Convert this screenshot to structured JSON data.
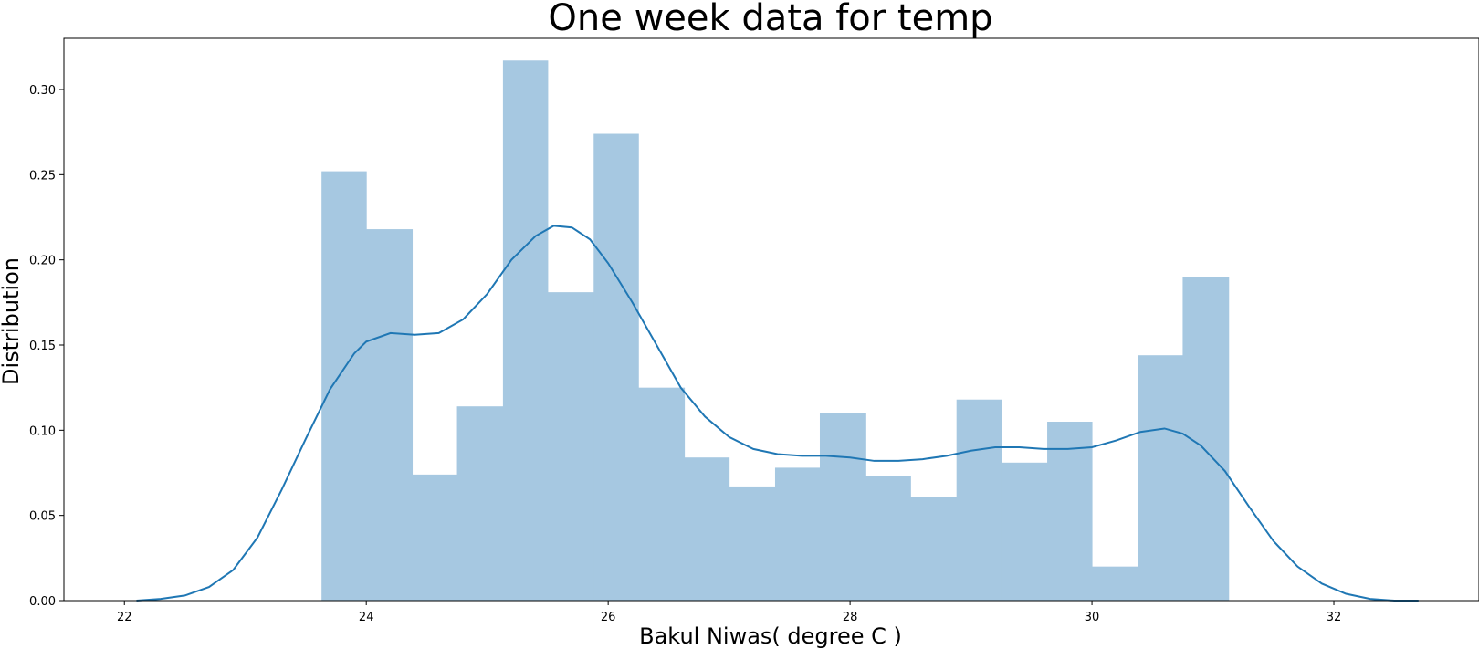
{
  "chart_data": {
    "type": "bar",
    "title": "One week data for temp",
    "xlabel": "Bakul Niwas( degree C )",
    "ylabel": "Distribution",
    "xlim": [
      21.5,
      33.2
    ],
    "ylim": [
      0,
      0.33
    ],
    "grid": false,
    "legend": "none",
    "xticks": [
      22,
      24,
      26,
      28,
      30,
      32
    ],
    "xtick_labels": [
      "22",
      "24",
      "26",
      "28",
      "30",
      "32"
    ],
    "yticks": [
      0,
      0.05,
      0.1,
      0.15,
      0.2,
      0.25,
      0.3
    ],
    "ytick_labels": [
      "0.00",
      "0.05",
      "0.10",
      "0.15",
      "0.20",
      "0.25",
      "0.30"
    ],
    "bin_edges": [
      23.63,
      24.0,
      24.38,
      24.75,
      25.13,
      25.5,
      25.88,
      26.25,
      26.63,
      27.0,
      27.38,
      27.75,
      28.13,
      28.5,
      28.88,
      29.25,
      29.63,
      30.0,
      30.38,
      30.75,
      31.13
    ],
    "histogram": [
      0.252,
      0.218,
      0.074,
      0.114,
      0.317,
      0.181,
      0.274,
      0.125,
      0.084,
      0.067,
      0.078,
      0.11,
      0.073,
      0.061,
      0.118,
      0.081,
      0.105,
      0.02,
      0.144,
      0.19
    ],
    "kde": {
      "x": [
        22.1,
        22.3,
        22.5,
        22.7,
        22.9,
        23.1,
        23.3,
        23.5,
        23.7,
        23.9,
        24.0,
        24.2,
        24.4,
        24.6,
        24.8,
        25.0,
        25.2,
        25.4,
        25.55,
        25.7,
        25.85,
        26.0,
        26.2,
        26.4,
        26.6,
        26.8,
        27.0,
        27.2,
        27.4,
        27.6,
        27.8,
        28.0,
        28.2,
        28.4,
        28.6,
        28.8,
        29.0,
        29.2,
        29.4,
        29.6,
        29.8,
        30.0,
        30.2,
        30.4,
        30.6,
        30.75,
        30.9,
        31.1,
        31.3,
        31.5,
        31.7,
        31.9,
        32.1,
        32.3,
        32.5,
        32.7
      ],
      "y": [
        0.0,
        0.001,
        0.003,
        0.008,
        0.018,
        0.037,
        0.065,
        0.095,
        0.124,
        0.145,
        0.152,
        0.157,
        0.156,
        0.157,
        0.165,
        0.18,
        0.2,
        0.214,
        0.22,
        0.219,
        0.212,
        0.198,
        0.175,
        0.15,
        0.125,
        0.108,
        0.096,
        0.089,
        0.086,
        0.085,
        0.085,
        0.084,
        0.082,
        0.082,
        0.083,
        0.085,
        0.088,
        0.09,
        0.09,
        0.089,
        0.089,
        0.09,
        0.094,
        0.099,
        0.101,
        0.098,
        0.091,
        0.076,
        0.055,
        0.035,
        0.02,
        0.01,
        0.004,
        0.001,
        0.0,
        0.0
      ]
    },
    "colors": {
      "bar": "#a6c8e1",
      "kde": "#1f77b4"
    }
  }
}
